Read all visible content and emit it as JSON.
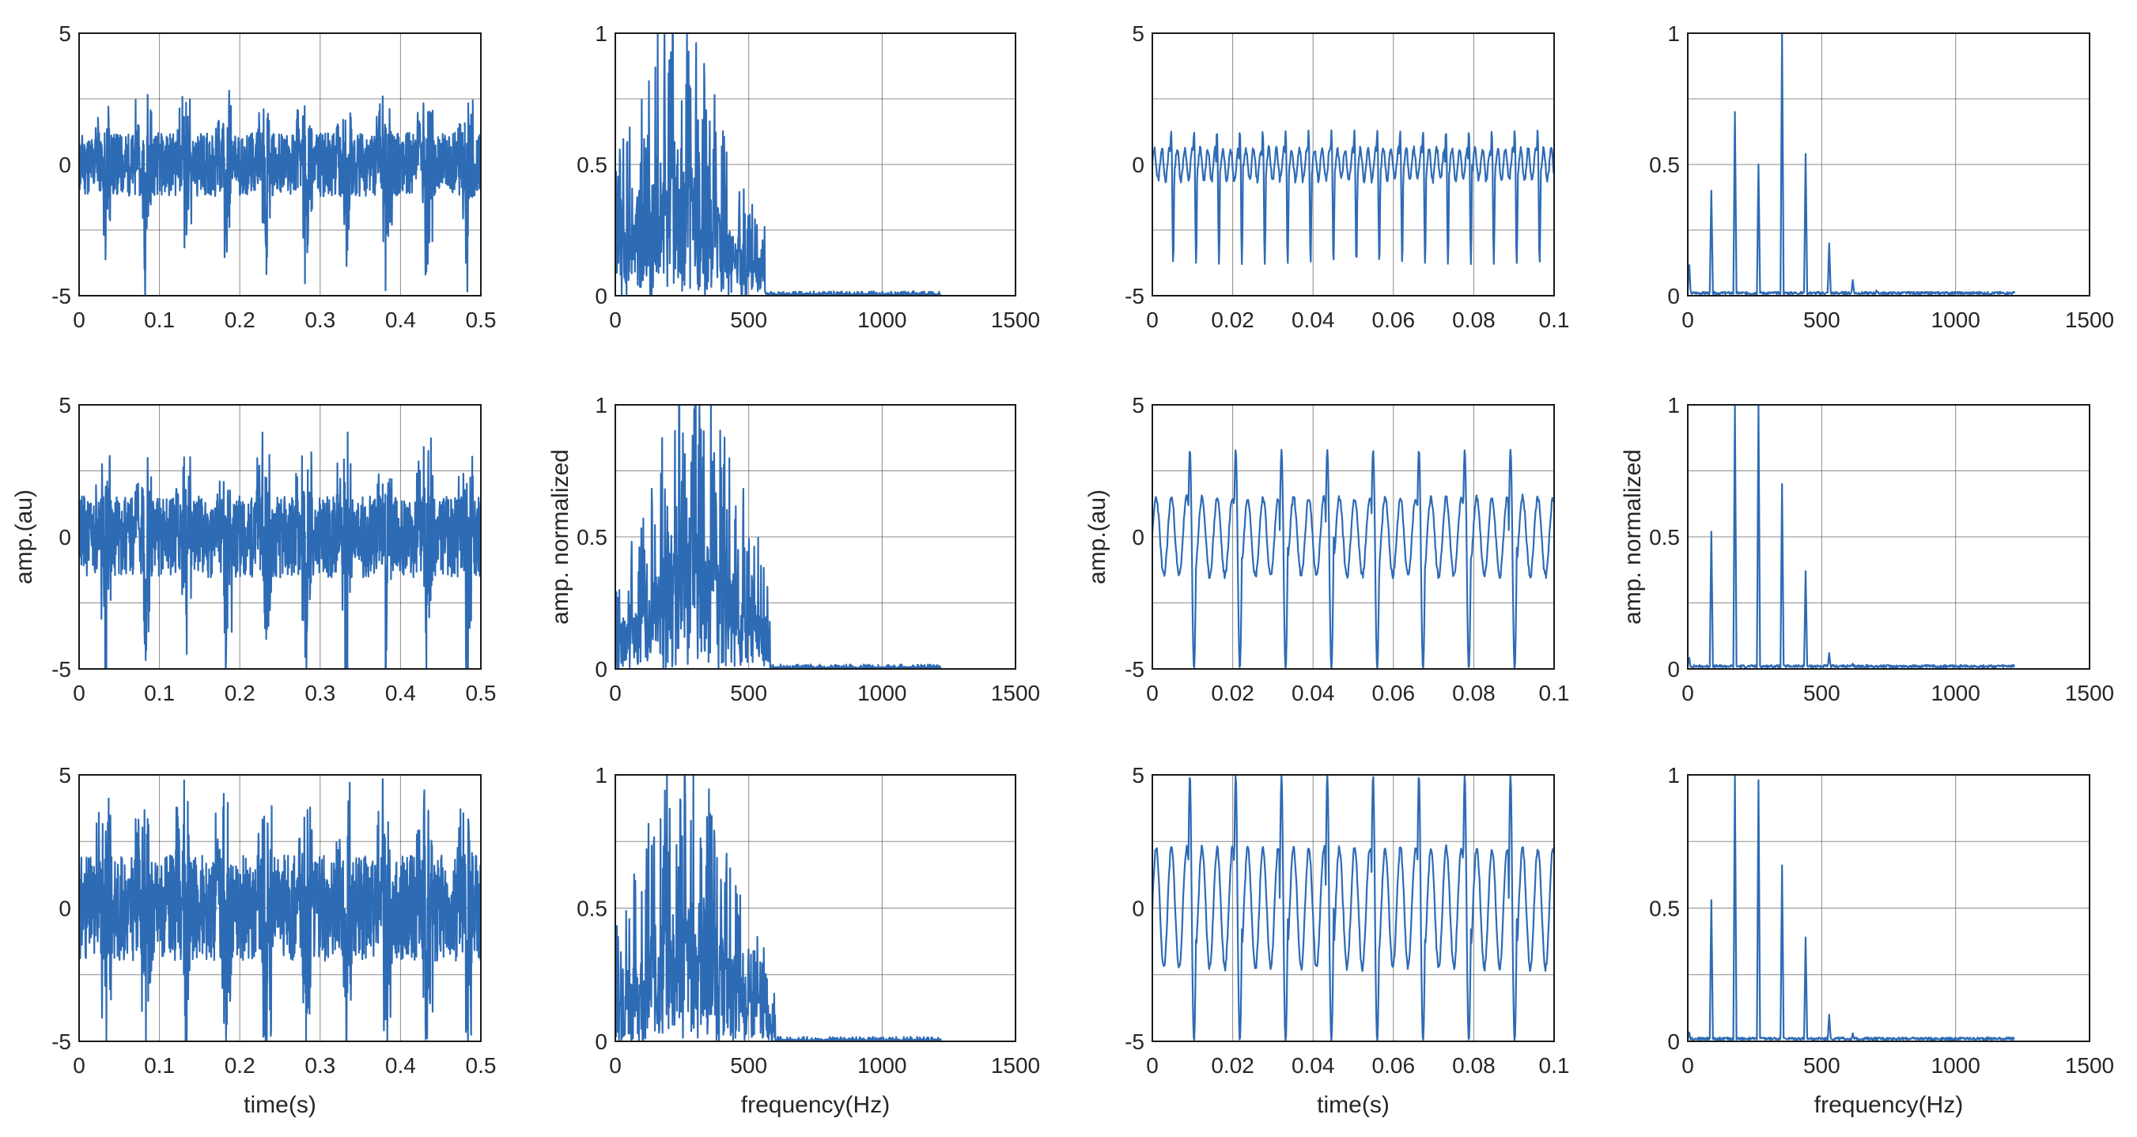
{
  "figure": {
    "description_labels": {
      "time_label": "time(s)",
      "freq_label": "frequency(Hz)",
      "amp_label": "amp.(au)",
      "norm_label": "amp. normalized"
    },
    "line_color": "#2e6bb5",
    "grid_color": "#2b2b2b"
  },
  "chart_data": [
    {
      "type": "line",
      "row": 1,
      "col": 1,
      "kind": "time",
      "xlim": [
        0,
        0.5
      ],
      "ylim": [
        -5,
        5
      ],
      "xticks": [
        "0",
        "0.1",
        "0.2",
        "0.3",
        "0.4",
        "0.5"
      ],
      "yticks": [
        "-5",
        "0",
        "5"
      ],
      "xlabel": "",
      "ylabel": "",
      "title": "",
      "seed": 11,
      "period": 0.05,
      "amp": 2.2,
      "spike": 3.6
    },
    {
      "type": "line",
      "row": 1,
      "col": 2,
      "kind": "spectrum",
      "xlim": [
        0,
        1500
      ],
      "ylim": [
        0,
        1
      ],
      "xticks": [
        "0",
        "500",
        "1000",
        "1500"
      ],
      "yticks": [
        "0",
        "0.5",
        "1"
      ],
      "xlabel": "",
      "ylabel": "",
      "title": "",
      "seed": 12,
      "harmonics": false,
      "peak_freq": 215,
      "cutoff": 560,
      "end": 1220
    },
    {
      "type": "line",
      "row": 1,
      "col": 3,
      "kind": "time",
      "xlim": [
        0,
        0.1
      ],
      "ylim": [
        -5,
        5
      ],
      "xticks": [
        "0",
        "0.02",
        "0.04",
        "0.06",
        "0.08",
        "0.1"
      ],
      "yticks": [
        "-5",
        "0",
        "5"
      ],
      "xlabel": "",
      "ylabel": "",
      "title": "",
      "seed": 13,
      "period": 0.0057,
      "amp": 1.3,
      "spike": 3.8,
      "smooth": true
    },
    {
      "type": "line",
      "row": 1,
      "col": 4,
      "kind": "spectrum",
      "xlim": [
        0,
        1500
      ],
      "ylim": [
        0,
        1
      ],
      "xticks": [
        "0",
        "500",
        "1000",
        "1500"
      ],
      "yticks": [
        "0",
        "0.5",
        "1"
      ],
      "xlabel": "",
      "ylabel": "",
      "title": "",
      "seed": 14,
      "harmonics": true,
      "peaks": [
        [
          5,
          0.14
        ],
        [
          88,
          0.4
        ],
        [
          176,
          0.7
        ],
        [
          264,
          0.5
        ],
        [
          352,
          1.0
        ],
        [
          440,
          0.54
        ],
        [
          528,
          0.2
        ],
        [
          616,
          0.06
        ],
        [
          704,
          0.02
        ]
      ],
      "end": 1220
    },
    {
      "type": "line",
      "row": 2,
      "col": 1,
      "kind": "time",
      "xlim": [
        0,
        0.5
      ],
      "ylim": [
        -5,
        5
      ],
      "xticks": [
        "0",
        "0.1",
        "0.2",
        "0.3",
        "0.4",
        "0.5"
      ],
      "yticks": [
        "-5",
        "0",
        "5"
      ],
      "xlabel": "",
      "ylabel": "amp.(au)",
      "title": "",
      "seed": 21,
      "period": 0.05,
      "amp": 2.8,
      "spike": 4.5
    },
    {
      "type": "line",
      "row": 2,
      "col": 2,
      "kind": "spectrum",
      "xlim": [
        0,
        1500
      ],
      "ylim": [
        0,
        1
      ],
      "xticks": [
        "0",
        "500",
        "1000",
        "1500"
      ],
      "yticks": [
        "0",
        "0.5",
        "1"
      ],
      "xlabel": "",
      "ylabel": "amp. normalized",
      "title": "",
      "seed": 22,
      "harmonics": false,
      "peak_freq": 300,
      "cutoff": 580,
      "end": 1220
    },
    {
      "type": "line",
      "row": 2,
      "col": 3,
      "kind": "time",
      "xlim": [
        0,
        0.1
      ],
      "ylim": [
        -5,
        5
      ],
      "xticks": [
        "0",
        "0.02",
        "0.04",
        "0.06",
        "0.08",
        "0.1"
      ],
      "yticks": [
        "-5",
        "0",
        "5"
      ],
      "xlabel": "",
      "ylabel": "amp.(au)",
      "title": "",
      "seed": 23,
      "period": 0.0114,
      "amp": 3.3,
      "spike": 5.0,
      "smooth": true
    },
    {
      "type": "line",
      "row": 2,
      "col": 4,
      "kind": "spectrum",
      "xlim": [
        0,
        1500
      ],
      "ylim": [
        0,
        1
      ],
      "xticks": [
        "0",
        "500",
        "1000",
        "1500"
      ],
      "yticks": [
        "0",
        "0.5",
        "1"
      ],
      "xlabel": "",
      "ylabel": "amp. normalized",
      "title": "",
      "seed": 24,
      "harmonics": true,
      "peaks": [
        [
          5,
          0.05
        ],
        [
          88,
          0.52
        ],
        [
          176,
          1.0
        ],
        [
          264,
          1.0
        ],
        [
          352,
          0.7
        ],
        [
          440,
          0.37
        ],
        [
          528,
          0.06
        ],
        [
          616,
          0.02
        ]
      ],
      "end": 1220
    },
    {
      "type": "line",
      "row": 3,
      "col": 1,
      "kind": "time",
      "xlim": [
        0,
        0.5
      ],
      "ylim": [
        -5,
        5
      ],
      "xticks": [
        "0",
        "0.1",
        "0.2",
        "0.3",
        "0.4",
        "0.5"
      ],
      "yticks": [
        "-5",
        "0",
        "5"
      ],
      "xlabel": "time(s)",
      "ylabel": "",
      "title": "",
      "seed": 31,
      "period": 0.05,
      "amp": 3.6,
      "spike": 5.0
    },
    {
      "type": "line",
      "row": 3,
      "col": 2,
      "kind": "spectrum",
      "xlim": [
        0,
        1500
      ],
      "ylim": [
        0,
        1
      ],
      "xticks": [
        "0",
        "500",
        "1000",
        "1500"
      ],
      "yticks": [
        "0",
        "0.5",
        "1"
      ],
      "xlabel": "frequency(Hz)",
      "ylabel": "",
      "title": "",
      "seed": 32,
      "harmonics": false,
      "peak_freq": 260,
      "cutoff": 600,
      "end": 1220
    },
    {
      "type": "line",
      "row": 3,
      "col": 3,
      "kind": "time",
      "xlim": [
        0,
        0.1
      ],
      "ylim": [
        -5,
        5
      ],
      "xticks": [
        "0",
        "0.02",
        "0.04",
        "0.06",
        "0.08",
        "0.1"
      ],
      "yticks": [
        "-5",
        "0",
        "5"
      ],
      "xlabel": "time(s)",
      "ylabel": "",
      "title": "",
      "seed": 33,
      "period": 0.0114,
      "amp": 5.0,
      "spike": 5.0,
      "smooth": true
    },
    {
      "type": "line",
      "row": 3,
      "col": 4,
      "kind": "spectrum",
      "xlim": [
        0,
        1500
      ],
      "ylim": [
        0,
        1
      ],
      "xticks": [
        "0",
        "500",
        "1000",
        "1500"
      ],
      "yticks": [
        "0",
        "0.5",
        "1"
      ],
      "xlabel": "frequency(Hz)",
      "ylabel": "",
      "title": "",
      "seed": 34,
      "harmonics": true,
      "peaks": [
        [
          5,
          0.04
        ],
        [
          88,
          0.53
        ],
        [
          176,
          1.0
        ],
        [
          264,
          0.98
        ],
        [
          352,
          0.66
        ],
        [
          440,
          0.39
        ],
        [
          528,
          0.1
        ],
        [
          616,
          0.03
        ]
      ],
      "end": 1220
    }
  ]
}
